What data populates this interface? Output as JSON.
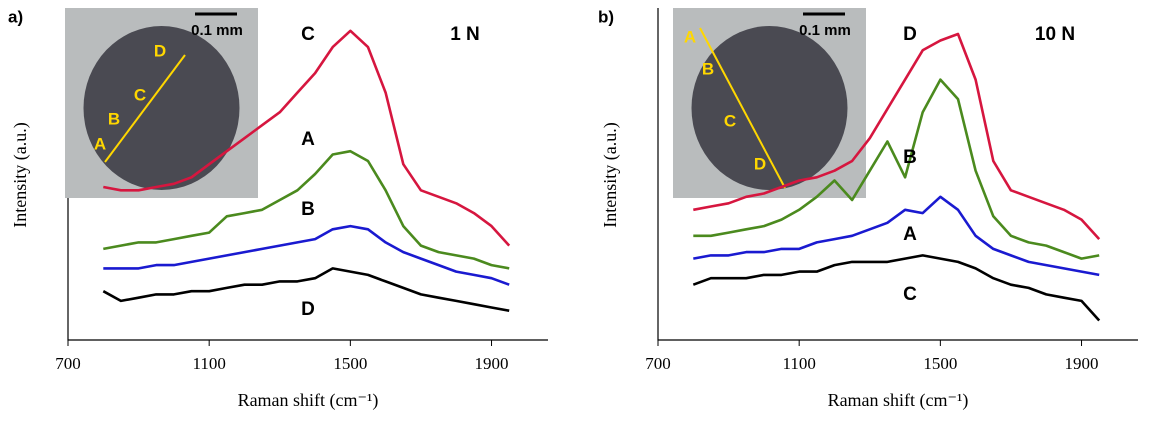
{
  "chart_data": [
    {
      "type": "line",
      "panel_label": "a)",
      "annotation": "1 N",
      "x_label": "Raman shift (cm⁻¹)",
      "y_label": "Intensity (a.u.)",
      "xlim": [
        700,
        2060
      ],
      "xticks": [
        700,
        1100,
        1500,
        1900
      ],
      "ylim": [
        0,
        5.1
      ],
      "inset": {
        "scale_bar": "0.1 mm",
        "points": [
          "A",
          "B",
          "C",
          "D"
        ]
      },
      "x": [
        800,
        850,
        900,
        950,
        1000,
        1050,
        1100,
        1150,
        1200,
        1250,
        1300,
        1350,
        1400,
        1450,
        1500,
        1550,
        1600,
        1650,
        1700,
        1750,
        1800,
        1850,
        1900,
        1950
      ],
      "series": [
        {
          "name": "C",
          "color": "#d6163f",
          "values": [
            2.35,
            2.3,
            2.3,
            2.35,
            2.4,
            2.5,
            2.7,
            2.9,
            3.1,
            3.3,
            3.5,
            3.8,
            4.1,
            4.5,
            4.75,
            4.5,
            3.8,
            2.7,
            2.3,
            2.2,
            2.1,
            1.95,
            1.75,
            1.45
          ]
        },
        {
          "name": "A",
          "color": "#4b8a1e",
          "values": [
            1.4,
            1.45,
            1.5,
            1.5,
            1.55,
            1.6,
            1.65,
            1.9,
            1.95,
            2.0,
            2.15,
            2.3,
            2.55,
            2.85,
            2.9,
            2.75,
            2.3,
            1.75,
            1.45,
            1.35,
            1.3,
            1.25,
            1.15,
            1.1
          ]
        },
        {
          "name": "B",
          "color": "#1a1ad0",
          "values": [
            1.1,
            1.1,
            1.1,
            1.15,
            1.15,
            1.2,
            1.25,
            1.3,
            1.35,
            1.4,
            1.45,
            1.5,
            1.55,
            1.7,
            1.75,
            1.7,
            1.5,
            1.35,
            1.25,
            1.15,
            1.05,
            1.0,
            0.95,
            0.85
          ]
        },
        {
          "name": "D",
          "color": "#000000",
          "values": [
            0.75,
            0.6,
            0.65,
            0.7,
            0.7,
            0.75,
            0.75,
            0.8,
            0.85,
            0.85,
            0.9,
            0.9,
            0.95,
            1.1,
            1.05,
            1.0,
            0.9,
            0.8,
            0.7,
            0.65,
            0.6,
            0.55,
            0.5,
            0.45
          ]
        }
      ]
    },
    {
      "type": "line",
      "panel_label": "b)",
      "annotation": "10 N",
      "x_label": "Raman shift (cm⁻¹)",
      "y_label": "Intensity (a.u.)",
      "xlim": [
        700,
        2060
      ],
      "xticks": [
        700,
        1100,
        1500,
        1900
      ],
      "ylim": [
        0,
        5.1
      ],
      "inset": {
        "scale_bar": "0.1 mm",
        "points": [
          "A",
          "B",
          "C",
          "D"
        ]
      },
      "x": [
        800,
        850,
        900,
        950,
        1000,
        1050,
        1100,
        1150,
        1200,
        1250,
        1300,
        1350,
        1400,
        1450,
        1500,
        1550,
        1600,
        1650,
        1700,
        1750,
        1800,
        1850,
        1900,
        1950
      ],
      "series": [
        {
          "name": "D",
          "color": "#d6163f",
          "values": [
            2.0,
            2.05,
            2.1,
            2.2,
            2.25,
            2.35,
            2.45,
            2.5,
            2.6,
            2.75,
            3.1,
            3.55,
            4.0,
            4.45,
            4.6,
            4.7,
            4.0,
            2.75,
            2.3,
            2.2,
            2.1,
            2.0,
            1.85,
            1.55
          ]
        },
        {
          "name": "B",
          "color": "#4b8a1e",
          "values": [
            1.6,
            1.6,
            1.65,
            1.7,
            1.75,
            1.85,
            2.0,
            2.2,
            2.45,
            2.15,
            2.6,
            3.05,
            2.5,
            3.5,
            4.0,
            3.7,
            2.6,
            1.9,
            1.6,
            1.5,
            1.45,
            1.35,
            1.25,
            1.3
          ]
        },
        {
          "name": "A",
          "color": "#1a1ad0",
          "values": [
            1.25,
            1.3,
            1.3,
            1.35,
            1.35,
            1.4,
            1.4,
            1.5,
            1.55,
            1.6,
            1.7,
            1.8,
            2.0,
            1.95,
            2.2,
            2.0,
            1.6,
            1.4,
            1.3,
            1.2,
            1.15,
            1.1,
            1.05,
            1.0
          ]
        },
        {
          "name": "C",
          "color": "#000000",
          "values": [
            0.85,
            0.95,
            0.95,
            0.95,
            1.0,
            1.0,
            1.05,
            1.05,
            1.15,
            1.2,
            1.2,
            1.2,
            1.25,
            1.3,
            1.25,
            1.2,
            1.1,
            0.95,
            0.85,
            0.8,
            0.7,
            0.65,
            0.6,
            0.3
          ]
        }
      ]
    }
  ]
}
